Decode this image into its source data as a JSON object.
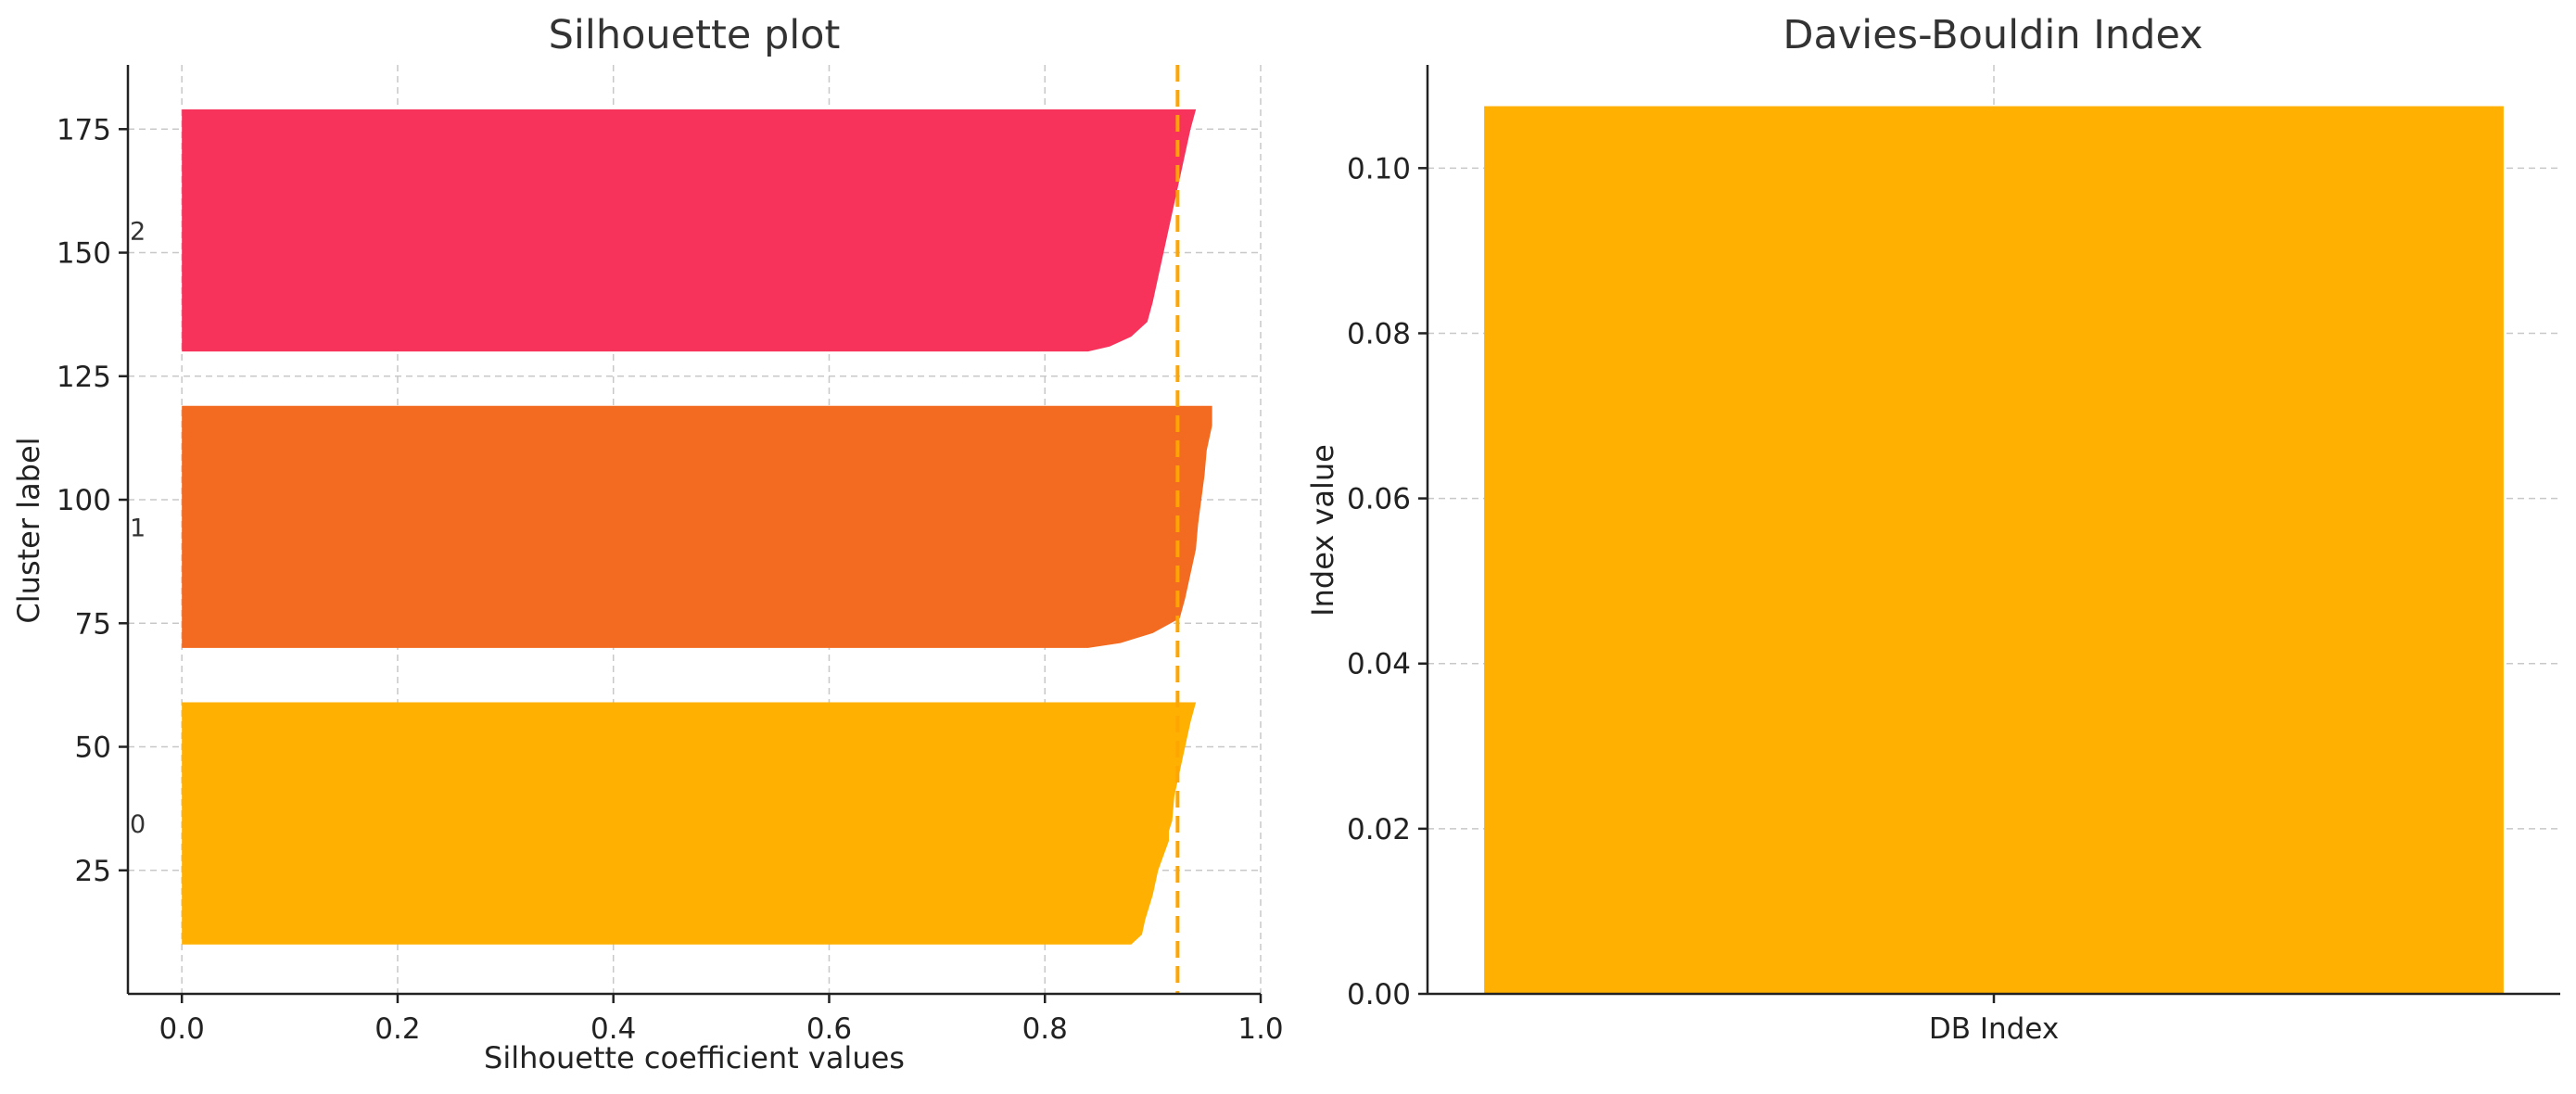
{
  "chart_data": [
    {
      "type": "area",
      "title": "Silhouette plot",
      "xlabel": "Silhouette coefficient values",
      "ylabel": "Cluster label",
      "xlim": [
        -0.05,
        1.0
      ],
      "ylim": [
        0,
        188
      ],
      "xticks": [
        0.0,
        0.2,
        0.4,
        0.6,
        0.8,
        1.0
      ],
      "xtick_labels": [
        "0.0",
        "0.2",
        "0.4",
        "0.6",
        "0.8",
        "1.0"
      ],
      "yticks": [
        25,
        50,
        75,
        100,
        125,
        150,
        175
      ],
      "ytick_labels": [
        "25",
        "50",
        "75",
        "100",
        "125",
        "150",
        "175"
      ],
      "grid": true,
      "average_line": {
        "x": 0.923,
        "color": "#FFA500"
      },
      "clusters": [
        {
          "label": "0",
          "y_lower": 10,
          "y_upper": 59,
          "color": "#FFB000",
          "profile": [
            [
              10,
              0.88
            ],
            [
              12,
              0.89
            ],
            [
              15,
              0.893
            ],
            [
              20,
              0.9
            ],
            [
              25,
              0.905
            ],
            [
              28,
              0.91
            ],
            [
              31,
              0.915
            ],
            [
              33,
              0.915
            ],
            [
              35,
              0.918
            ],
            [
              40,
              0.92
            ],
            [
              45,
              0.925
            ],
            [
              50,
              0.93
            ],
            [
              55,
              0.935
            ],
            [
              59,
              0.94
            ]
          ]
        },
        {
          "label": "1",
          "y_lower": 70,
          "y_upper": 119,
          "color": "#F26B21",
          "profile": [
            [
              70,
              0.84
            ],
            [
              71,
              0.87
            ],
            [
              73,
              0.9
            ],
            [
              76,
              0.925
            ],
            [
              80,
              0.93
            ],
            [
              85,
              0.935
            ],
            [
              90,
              0.94
            ],
            [
              95,
              0.942
            ],
            [
              100,
              0.945
            ],
            [
              105,
              0.948
            ],
            [
              110,
              0.95
            ],
            [
              115,
              0.955
            ],
            [
              119,
              0.955
            ]
          ]
        },
        {
          "label": "2",
          "y_lower": 130,
          "y_upper": 179,
          "color": "#F7325B",
          "profile": [
            [
              130,
              0.84
            ],
            [
              131,
              0.86
            ],
            [
              133,
              0.88
            ],
            [
              136,
              0.895
            ],
            [
              140,
              0.9
            ],
            [
              145,
              0.905
            ],
            [
              150,
              0.91
            ],
            [
              155,
              0.915
            ],
            [
              160,
              0.92
            ],
            [
              165,
              0.925
            ],
            [
              170,
              0.93
            ],
            [
              175,
              0.935
            ],
            [
              179,
              0.94
            ]
          ]
        }
      ]
    },
    {
      "type": "bar",
      "title": "Davies-Bouldin Index",
      "xlabel": "",
      "ylabel": "Index value",
      "categories": [
        "DB Index"
      ],
      "values": [
        0.1075
      ],
      "color": "#FFB000",
      "ylim": [
        0,
        0.1125
      ],
      "yticks": [
        0.0,
        0.02,
        0.04,
        0.06,
        0.08,
        0.1
      ],
      "ytick_labels": [
        "0.00",
        "0.02",
        "0.04",
        "0.06",
        "0.08",
        "0.10"
      ],
      "grid": true
    }
  ]
}
